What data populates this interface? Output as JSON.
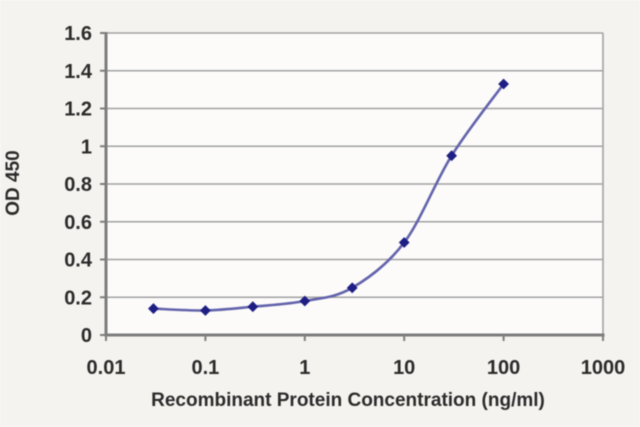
{
  "chart_data": {
    "type": "line",
    "title": "",
    "xlabel": "Recombinant Protein Concentration (ng/ml)",
    "ylabel": "OD 450",
    "x_scale": "log",
    "xlim": [
      0.01,
      1000
    ],
    "ylim": [
      0,
      1.6
    ],
    "x_ticks": [
      0.01,
      0.1,
      1,
      10,
      100,
      1000
    ],
    "x_tick_labels": [
      "0.01",
      "0.1",
      "1",
      "10",
      "100",
      "1000"
    ],
    "y_ticks": [
      0,
      0.2,
      0.4,
      0.6,
      0.8,
      1,
      1.2,
      1.4,
      1.6
    ],
    "y_tick_labels": [
      "0",
      "0.2",
      "0.4",
      "0.6",
      "0.8",
      "1",
      "1.2",
      "1.4",
      "1.6"
    ],
    "grid": "horizontal",
    "legend": "none",
    "series": [
      {
        "name": "OD 450",
        "marker": "diamond",
        "line_style": "smooth",
        "x": [
          0.03,
          0.1,
          0.3,
          1,
          3,
          10,
          30,
          100
        ],
        "y": [
          0.14,
          0.13,
          0.15,
          0.18,
          0.25,
          0.49,
          0.95,
          1.33
        ]
      }
    ],
    "colors": {
      "line": "#6363ac",
      "marker": "#1e1e84",
      "grid": "#a2a2a2",
      "axis": "#7d7d7d",
      "text": "#2b2b2b",
      "background": "#f5f3ef",
      "plot_background": "#fcfbfa"
    }
  }
}
